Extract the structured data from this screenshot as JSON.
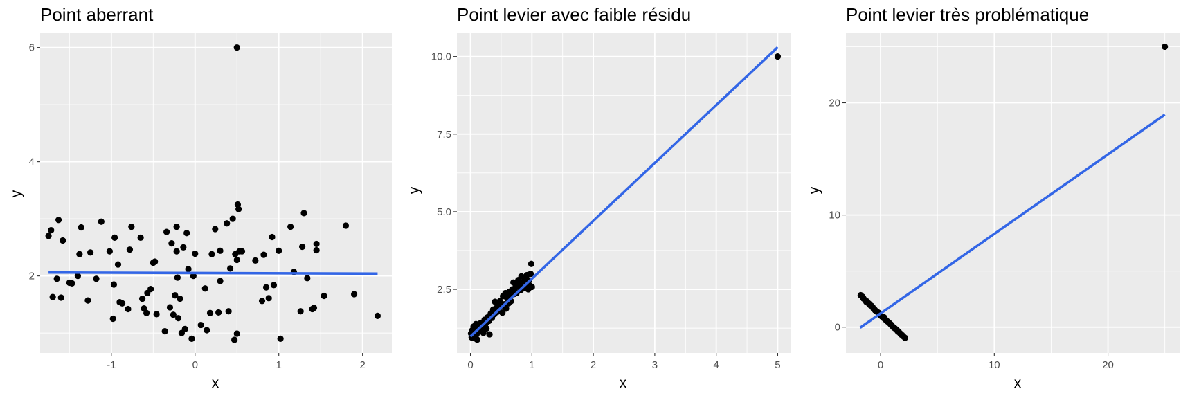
{
  "chart_data": [
    {
      "type": "scatter",
      "title": "Point aberrant",
      "xlabel": "x",
      "ylabel": "y",
      "xlim": [
        -1.85,
        2.35
      ],
      "ylim": [
        0.65,
        6.25
      ],
      "xticks": [
        -1,
        0,
        1,
        2
      ],
      "xtick_labels": [
        "-1",
        "0",
        "1",
        "2"
      ],
      "yticks": [
        2,
        4,
        6
      ],
      "ytick_labels": [
        "2",
        "4",
        "6"
      ],
      "grid": true,
      "fit_line": {
        "x": [
          -1.75,
          2.18
        ],
        "y": [
          2.06,
          2.04
        ],
        "color": "#3366e6"
      },
      "points": [
        [
          -1.75,
          2.7
        ],
        [
          -1.72,
          2.8
        ],
        [
          -1.7,
          1.63
        ],
        [
          -1.65,
          1.95
        ],
        [
          -1.63,
          2.98
        ],
        [
          -1.6,
          1.62
        ],
        [
          -1.58,
          2.62
        ],
        [
          -1.5,
          1.88
        ],
        [
          -1.47,
          1.87
        ],
        [
          -1.4,
          2.0
        ],
        [
          -1.38,
          2.38
        ],
        [
          -1.36,
          2.85
        ],
        [
          -1.28,
          1.57
        ],
        [
          -1.25,
          2.41
        ],
        [
          -1.18,
          1.95
        ],
        [
          -1.12,
          2.95
        ],
        [
          -1.02,
          2.43
        ],
        [
          -0.98,
          1.25
        ],
        [
          -0.97,
          1.85
        ],
        [
          -0.96,
          2.67
        ],
        [
          -0.92,
          2.2
        ],
        [
          -0.9,
          1.54
        ],
        [
          -0.87,
          1.52
        ],
        [
          -0.8,
          1.42
        ],
        [
          -0.78,
          2.46
        ],
        [
          -0.76,
          2.86
        ],
        [
          -0.65,
          2.67
        ],
        [
          -0.63,
          1.6
        ],
        [
          -0.61,
          1.43
        ],
        [
          -0.58,
          1.35
        ],
        [
          -0.57,
          1.7
        ],
        [
          -0.53,
          1.77
        ],
        [
          -0.5,
          2.23
        ],
        [
          -0.48,
          2.25
        ],
        [
          -0.46,
          1.33
        ],
        [
          -0.36,
          1.03
        ],
        [
          -0.34,
          2.77
        ],
        [
          -0.3,
          1.45
        ],
        [
          -0.28,
          2.57
        ],
        [
          -0.26,
          1.32
        ],
        [
          -0.24,
          1.66
        ],
        [
          -0.22,
          2.86
        ],
        [
          -0.22,
          2.43
        ],
        [
          -0.21,
          1.97
        ],
        [
          -0.2,
          1.26
        ],
        [
          -0.18,
          1.6
        ],
        [
          -0.16,
          1.0
        ],
        [
          -0.14,
          2.5
        ],
        [
          -0.12,
          1.07
        ],
        [
          -0.1,
          2.75
        ],
        [
          -0.08,
          2.12
        ],
        [
          -0.04,
          0.9
        ],
        [
          -0.02,
          2.0
        ],
        [
          0.0,
          2.39
        ],
        [
          0.07,
          1.14
        ],
        [
          0.12,
          1.78
        ],
        [
          0.14,
          1.05
        ],
        [
          0.18,
          1.35
        ],
        [
          0.2,
          2.38
        ],
        [
          0.24,
          2.82
        ],
        [
          0.28,
          1.36
        ],
        [
          0.3,
          2.44
        ],
        [
          0.3,
          1.91
        ],
        [
          0.38,
          2.92
        ],
        [
          0.4,
          1.38
        ],
        [
          0.42,
          2.13
        ],
        [
          0.45,
          3.0
        ],
        [
          0.47,
          0.88
        ],
        [
          0.48,
          2.38
        ],
        [
          0.5,
          0.99
        ],
        [
          0.5,
          2.28
        ],
        [
          0.51,
          3.25
        ],
        [
          0.52,
          3.17
        ],
        [
          0.53,
          2.43
        ],
        [
          0.56,
          2.43
        ],
        [
          0.5,
          6.0
        ],
        [
          0.72,
          2.27
        ],
        [
          0.8,
          1.56
        ],
        [
          0.82,
          2.37
        ],
        [
          0.85,
          1.8
        ],
        [
          0.88,
          1.61
        ],
        [
          0.92,
          2.68
        ],
        [
          0.94,
          1.84
        ],
        [
          1.0,
          2.44
        ],
        [
          1.02,
          0.9
        ],
        [
          1.14,
          2.86
        ],
        [
          1.18,
          2.07
        ],
        [
          1.26,
          1.38
        ],
        [
          1.28,
          2.51
        ],
        [
          1.3,
          3.1
        ],
        [
          1.34,
          1.96
        ],
        [
          1.4,
          1.42
        ],
        [
          1.42,
          1.44
        ],
        [
          1.45,
          2.45
        ],
        [
          1.45,
          2.56
        ],
        [
          1.54,
          1.65
        ],
        [
          1.8,
          2.88
        ],
        [
          1.9,
          1.68
        ],
        [
          2.18,
          1.3
        ]
      ]
    },
    {
      "type": "scatter",
      "title": "Point levier avec faible résidu",
      "xlabel": "x",
      "ylabel": "y",
      "xlim": [
        -0.22,
        5.22
      ],
      "ylim": [
        0.45,
        10.75
      ],
      "xticks": [
        0,
        1,
        2,
        3,
        4,
        5
      ],
      "xtick_labels": [
        "0",
        "1",
        "2",
        "3",
        "4",
        "5"
      ],
      "yticks": [
        2.5,
        5.0,
        7.5,
        10.0
      ],
      "ytick_labels": [
        "2.5",
        "5.0",
        "7.5",
        "10.0"
      ],
      "grid": true,
      "fit_line": {
        "x": [
          0.0,
          5.0
        ],
        "y": [
          0.98,
          10.3
        ],
        "color": "#3366e6"
      },
      "points": [
        [
          0.01,
          1.08
        ],
        [
          0.02,
          0.95
        ],
        [
          0.03,
          1.18
        ],
        [
          0.04,
          1.02
        ],
        [
          0.05,
          1.3
        ],
        [
          0.06,
          1.12
        ],
        [
          0.07,
          0.92
        ],
        [
          0.08,
          1.22
        ],
        [
          0.09,
          1.38
        ],
        [
          0.1,
          1.05
        ],
        [
          0.11,
          0.88
        ],
        [
          0.12,
          1.28
        ],
        [
          0.14,
          1.15
        ],
        [
          0.15,
          1.35
        ],
        [
          0.17,
          1.42
        ],
        [
          0.18,
          1.2
        ],
        [
          0.2,
          1.3
        ],
        [
          0.21,
          1.1
        ],
        [
          0.23,
          1.52
        ],
        [
          0.25,
          1.4
        ],
        [
          0.26,
          1.24
        ],
        [
          0.28,
          1.6
        ],
        [
          0.3,
          1.48
        ],
        [
          0.31,
          1.05
        ],
        [
          0.33,
          1.72
        ],
        [
          0.35,
          1.58
        ],
        [
          0.37,
          1.85
        ],
        [
          0.39,
          1.7
        ],
        [
          0.4,
          2.1
        ],
        [
          0.42,
          1.9
        ],
        [
          0.44,
          1.78
        ],
        [
          0.46,
          2.05
        ],
        [
          0.48,
          2.12
        ],
        [
          0.5,
          1.95
        ],
        [
          0.52,
          1.75
        ],
        [
          0.53,
          2.28
        ],
        [
          0.55,
          2.02
        ],
        [
          0.57,
          2.38
        ],
        [
          0.58,
          1.88
        ],
        [
          0.6,
          2.2
        ],
        [
          0.62,
          2.05
        ],
        [
          0.63,
          2.42
        ],
        [
          0.65,
          2.32
        ],
        [
          0.66,
          2.12
        ],
        [
          0.68,
          2.5
        ],
        [
          0.7,
          2.72
        ],
        [
          0.71,
          2.35
        ],
        [
          0.73,
          2.55
        ],
        [
          0.75,
          2.38
        ],
        [
          0.76,
          2.65
        ],
        [
          0.78,
          2.8
        ],
        [
          0.8,
          2.6
        ],
        [
          0.82,
          2.48
        ],
        [
          0.83,
          2.92
        ],
        [
          0.85,
          2.7
        ],
        [
          0.87,
          2.55
        ],
        [
          0.88,
          2.85
        ],
        [
          0.9,
          2.68
        ],
        [
          0.92,
          2.96
        ],
        [
          0.94,
          2.5
        ],
        [
          0.95,
          2.78
        ],
        [
          0.97,
          2.62
        ],
        [
          0.98,
          3.0
        ],
        [
          0.99,
          3.32
        ],
        [
          1.0,
          2.58
        ],
        [
          5.0,
          10.0
        ]
      ]
    },
    {
      "type": "scatter",
      "title": "Point levier très problématique",
      "xlabel": "x",
      "ylabel": "y",
      "xlim": [
        -3.05,
        26.3
      ],
      "ylim": [
        -2.3,
        26.2
      ],
      "xticks": [
        0,
        10,
        20
      ],
      "xtick_labels": [
        "0",
        "10",
        "20"
      ],
      "yticks": [
        0,
        10,
        20
      ],
      "ytick_labels": [
        "0",
        "10",
        "20"
      ],
      "grid": true,
      "fit_line": {
        "x": [
          -1.8,
          25.0
        ],
        "y": [
          -0.05,
          18.95
        ],
        "color": "#3366e6"
      },
      "points": [
        [
          -1.75,
          2.85
        ],
        [
          -1.6,
          2.72
        ],
        [
          -1.5,
          2.55
        ],
        [
          -1.35,
          2.4
        ],
        [
          -1.2,
          2.3
        ],
        [
          -1.05,
          2.12
        ],
        [
          -0.95,
          2.02
        ],
        [
          -0.8,
          1.9
        ],
        [
          -0.7,
          1.78
        ],
        [
          -0.6,
          1.62
        ],
        [
          -0.48,
          1.5
        ],
        [
          -0.35,
          1.4
        ],
        [
          -0.2,
          1.3
        ],
        [
          -0.1,
          1.18
        ],
        [
          0.0,
          1.05
        ],
        [
          0.12,
          0.95
        ],
        [
          0.25,
          0.82
        ],
        [
          0.38,
          0.72
        ],
        [
          0.5,
          0.6
        ],
        [
          0.62,
          0.5
        ],
        [
          0.75,
          0.38
        ],
        [
          0.88,
          0.26
        ],
        [
          1.0,
          0.12
        ],
        [
          1.12,
          0.0
        ],
        [
          1.25,
          -0.1
        ],
        [
          1.38,
          -0.22
        ],
        [
          1.5,
          -0.35
        ],
        [
          1.62,
          -0.45
        ],
        [
          1.75,
          -0.58
        ],
        [
          1.88,
          -0.7
        ],
        [
          2.0,
          -0.82
        ],
        [
          2.15,
          -0.95
        ],
        [
          -1.55,
          2.62
        ],
        [
          -1.25,
          2.25
        ],
        [
          -0.55,
          1.6
        ],
        [
          0.3,
          0.88
        ],
        [
          0.95,
          0.2
        ],
        [
          1.45,
          -0.28
        ],
        [
          1.8,
          -0.65
        ],
        [
          -0.9,
          1.95
        ],
        [
          25.0,
          25.0
        ]
      ]
    }
  ]
}
